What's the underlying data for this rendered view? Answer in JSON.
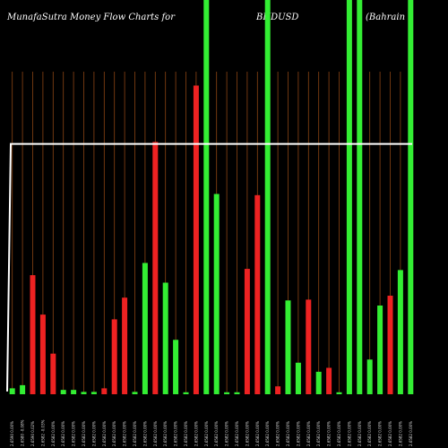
{
  "title": {
    "left": "MunafaSutra  Money Flow  Charts for",
    "symbol": "BHDUSD",
    "right": "(Bahrain"
  },
  "colors": {
    "background": "#000000",
    "gridline": "#8B4513",
    "up": "#33ee33",
    "down": "#ee2222",
    "line": "#ffffff"
  },
  "chart_data": {
    "type": "bar",
    "ylim": [
      0,
      100
    ],
    "grid": true,
    "categories": [
      "2.6590 0.00%",
      "2.6580 -0.08%",
      "2.6590 0.02%",
      "2.6582 -0.03%",
      "2.6582 0.00%",
      "2.6582 0.00%",
      "2.6582 0.00%",
      "2.6582 0.00%",
      "2.6582 0.00%",
      "2.6582 0.00%",
      "2.6582 0.00%",
      "2.6582 0.00%",
      "2.6582 0.00%",
      "2.6582 0.00%",
      "2.6582 0.00%",
      "2.6582 0.00%",
      "2.6582 0.00%",
      "2.6582 0.00%",
      "2.6582 0.00%",
      "2.6582 0.00%",
      "2.6582 0.00%",
      "2.6582 0.00%",
      "2.6582 0.00%",
      "2.6582 0.00%",
      "2.6582 0.00%",
      "2.6582 0.00%",
      "2.6582 0.00%",
      "2.6582 0.00%",
      "2.6582 0.00%",
      "2.6582 0.00%",
      "2.6582 0.00%",
      "2.6582 0.00%",
      "2.6582 0.00%",
      "2.6582 0.00%",
      "2.6582 0.00%",
      "2.6582 0.00%",
      "2.6582 0.00%",
      "2.6582 0.00%",
      "2.6582 0.00%",
      "2.6582 0.00%"
    ],
    "series": [
      {
        "values": [
          1.5,
          2.3,
          30.2,
          20.2,
          10.3,
          1.1,
          1.1,
          0.6,
          0.6,
          1.5,
          19.0,
          24.5,
          0.6,
          33.3,
          64.0,
          28.3,
          13.8,
          0.5,
          78.3,
          100,
          50.8,
          0.5,
          0.5,
          31.8,
          50.5,
          100,
          2.0,
          23.8,
          8.0,
          24.0,
          5.7,
          6.7,
          0.5,
          100,
          100,
          8.8,
          22.5,
          25.0,
          31.5,
          100
        ],
        "colors": [
          "up",
          "up",
          "down",
          "down",
          "down",
          "up",
          "up",
          "up",
          "up",
          "down",
          "down",
          "down",
          "up",
          "up",
          "down",
          "up",
          "up",
          "up",
          "down",
          "up",
          "up",
          "up",
          "up",
          "down",
          "down",
          "up",
          "down",
          "up",
          "up",
          "down",
          "up",
          "down",
          "up",
          "up",
          "up",
          "up",
          "up",
          "down",
          "up",
          "up"
        ]
      }
    ],
    "line": {
      "start_level": 0.7,
      "level": 63.5
    }
  }
}
